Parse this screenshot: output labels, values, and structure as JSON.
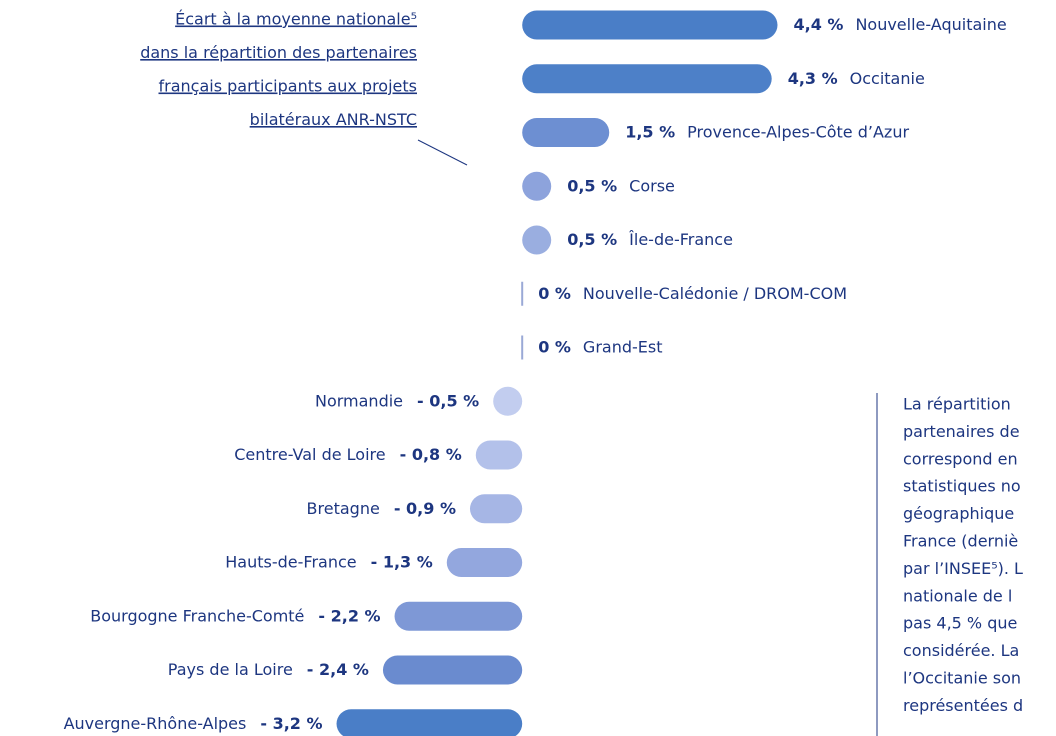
{
  "chart_data": {
    "type": "diverging-bar",
    "title_lines": [
      "Écart à la moyenne nationale⁵",
      "dans la répartition des partenaires",
      "français participants aux projets",
      "bilatéraux ANR-NSTC"
    ],
    "categories": [
      "Nouvelle-Aquitaine",
      "Occitanie",
      "Provence-Alpes-Côte d’Azur",
      "Corse",
      "Île-de-France",
      "Nouvelle-Calédonie / DROM-COM",
      "Grand-Est",
      "Normandie",
      "Centre-Val de Loire",
      "Bretagne",
      "Hauts-de-France",
      "Bourgogne Franche-Comté",
      "Pays de la Loire",
      "Auvergne-Rhône-Alpes"
    ],
    "values": [
      4.4,
      4.3,
      1.5,
      0.5,
      0.5,
      0,
      0,
      -0.5,
      -0.8,
      -0.9,
      -1.3,
      -2.2,
      -2.4,
      -3.2
    ],
    "value_labels": [
      "4,4 %",
      "4,3 %",
      "1,5 %",
      "0,5 %",
      "0,5 %",
      "0 %",
      "0 %",
      "- 0,5 %",
      "- 0,8 %",
      "- 0,9 %",
      "- 1,3 %",
      "- 2,2 %",
      "- 2,4 %",
      "- 3,2 %"
    ],
    "colors": [
      "#4a7ec7",
      "#4d80c8",
      "#6d8fd2",
      "#8da3dc",
      "#9aaee0",
      "#9aa9d6",
      "#9aa9d6",
      "#c2cdef",
      "#b3c1ea",
      "#a6b6e5",
      "#93a7de",
      "#7e98d6",
      "#6a8bcf",
      "#4a7ec7"
    ],
    "xlim": [
      -9,
      9.2
    ],
    "note_lines": [
      "La répartition",
      "partenaires de",
      "correspond en",
      "statistiques no",
      "géographique",
      "France (derniè",
      "par l’INSEE⁵).  L",
      "nationale de l",
      "pas 4,5 % que",
      "considérée. La",
      "l’Occitanie son",
      "représentées d"
    ]
  }
}
